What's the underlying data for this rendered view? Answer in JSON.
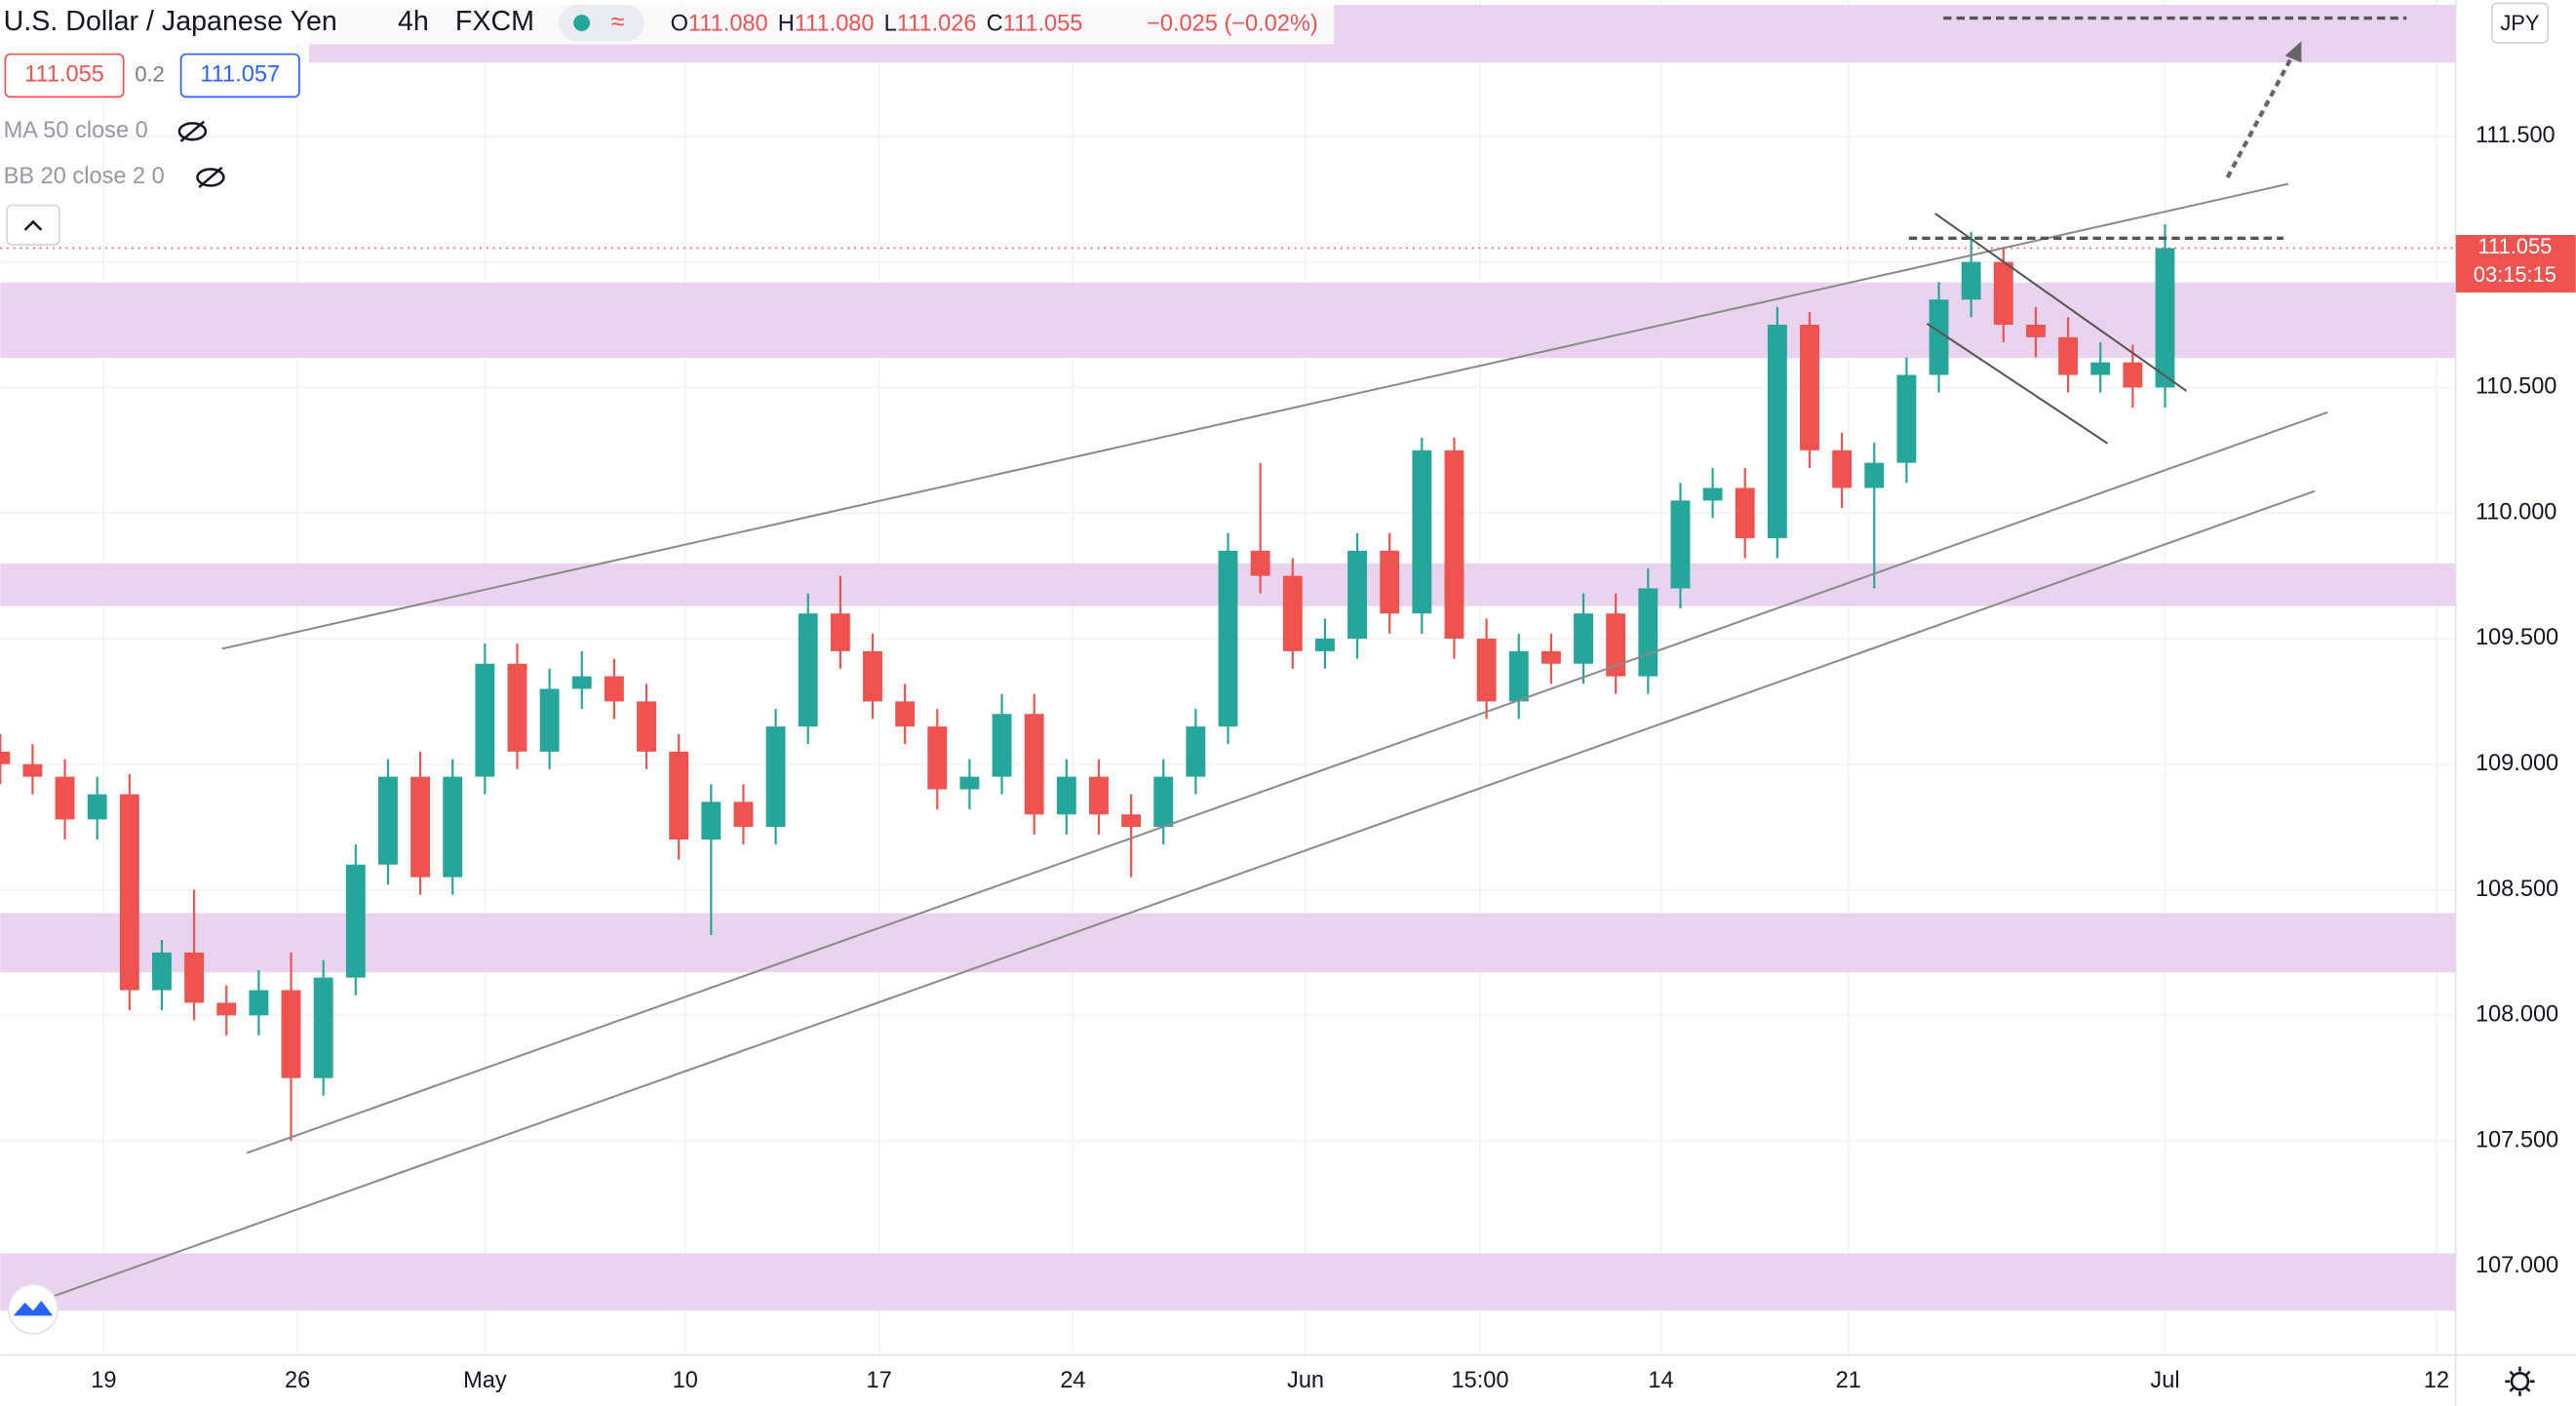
{
  "header": {
    "symbol": "U.S. Dollar / Japanese Yen",
    "interval": "4h",
    "exchange": "FXCM",
    "ohlc": [
      {
        "key": "O",
        "value": "111.080"
      },
      {
        "key": "H",
        "value": "111.080"
      },
      {
        "key": "L",
        "value": "111.026"
      },
      {
        "key": "C",
        "value": "111.055"
      }
    ],
    "change": "−0.025 (−0.02%)",
    "sell": "111.055",
    "spread": "0.2",
    "buy": "111.057",
    "indicators": [
      "MA 50 close 0",
      "BB 20 close 2 0"
    ],
    "currency": "JPY"
  },
  "chart_data": {
    "type": "candlestick",
    "up_color": "#26a69a",
    "down_color": "#ef5350",
    "grid": true,
    "xlim": [
      0,
      380
    ],
    "ylim": [
      106.647,
      112.043
    ],
    "yticks": [
      {
        "value": 107,
        "label": "107.000"
      },
      {
        "value": 107.5,
        "label": "107.500"
      },
      {
        "value": 108,
        "label": "108.000"
      },
      {
        "value": 108.5,
        "label": "108.500"
      },
      {
        "value": 109,
        "label": "109.000"
      },
      {
        "value": 109.5,
        "label": "109.500"
      },
      {
        "value": 110,
        "label": "110.000"
      },
      {
        "value": 110.5,
        "label": "110.500"
      },
      {
        "value": 111,
        "label": "111.000"
      },
      {
        "value": 111.5,
        "label": "111.500"
      }
    ],
    "xticks": [
      {
        "value": 16,
        "label": "19"
      },
      {
        "value": 46,
        "label": "26"
      },
      {
        "value": 75,
        "label": "May"
      },
      {
        "value": 106,
        "label": "10"
      },
      {
        "value": 136,
        "label": "17"
      },
      {
        "value": 166,
        "label": "24"
      },
      {
        "value": 202,
        "label": "Jun"
      },
      {
        "value": 229,
        "label": "15:00"
      },
      {
        "value": 257,
        "label": "14"
      },
      {
        "value": 286,
        "label": "21"
      },
      {
        "value": 335,
        "label": "Jul"
      },
      {
        "value": 377,
        "label": "12"
      }
    ],
    "x": [
      0,
      5,
      10,
      15,
      20,
      25,
      30,
      35,
      40,
      45,
      50,
      55,
      60,
      65,
      70,
      75,
      80,
      85,
      90,
      95,
      100,
      105,
      110,
      115,
      120,
      125,
      130,
      135,
      140,
      145,
      150,
      155,
      160,
      165,
      170,
      175,
      180,
      185,
      190,
      195,
      200,
      205,
      210,
      215,
      220,
      225,
      230,
      235,
      240,
      245,
      250,
      255,
      260,
      265,
      270,
      275,
      280,
      285,
      290,
      295,
      300,
      305,
      310,
      315,
      320,
      325,
      330,
      335
    ],
    "open": [
      109.05,
      109.0,
      108.95,
      108.78,
      108.88,
      108.1,
      108.25,
      108.05,
      108.0,
      108.1,
      107.75,
      108.15,
      108.6,
      108.95,
      108.55,
      108.95,
      109.4,
      109.05,
      109.3,
      109.35,
      109.25,
      109.05,
      108.7,
      108.85,
      108.75,
      109.15,
      109.6,
      109.45,
      109.25,
      109.15,
      108.9,
      108.95,
      109.2,
      108.8,
      108.95,
      108.8,
      108.75,
      108.95,
      109.15,
      109.85,
      109.75,
      109.45,
      109.5,
      109.85,
      109.6,
      110.25,
      109.5,
      109.25,
      109.45,
      109.4,
      109.6,
      109.35,
      109.7,
      110.05,
      110.1,
      109.9,
      110.75,
      110.25,
      110.1,
      110.2,
      110.55,
      110.85,
      111.0,
      110.75,
      110.7,
      110.55,
      110.6,
      110.5
    ],
    "high": [
      109.12,
      109.08,
      109.02,
      108.95,
      108.96,
      108.3,
      108.5,
      108.12,
      108.18,
      108.25,
      108.22,
      108.68,
      109.02,
      109.05,
      109.02,
      109.48,
      109.48,
      109.38,
      109.45,
      109.42,
      109.32,
      109.12,
      108.92,
      108.92,
      109.22,
      109.68,
      109.75,
      109.52,
      109.32,
      109.22,
      109.02,
      109.28,
      109.28,
      109.02,
      109.02,
      108.88,
      109.02,
      109.22,
      109.92,
      110.2,
      109.82,
      109.58,
      109.92,
      109.92,
      110.3,
      110.3,
      109.58,
      109.52,
      109.52,
      109.68,
      109.68,
      109.78,
      110.12,
      110.18,
      110.18,
      110.82,
      110.8,
      110.32,
      110.28,
      110.62,
      110.92,
      111.12,
      111.06,
      110.82,
      110.78,
      110.68,
      110.67,
      111.15
    ],
    "low": [
      108.92,
      108.88,
      108.7,
      108.7,
      108.02,
      108.02,
      107.98,
      107.92,
      107.92,
      107.5,
      107.68,
      108.08,
      108.52,
      108.48,
      108.48,
      108.88,
      108.98,
      108.98,
      109.22,
      109.18,
      108.98,
      108.62,
      108.32,
      108.68,
      108.68,
      109.08,
      109.38,
      109.18,
      109.08,
      108.82,
      108.82,
      108.88,
      108.72,
      108.72,
      108.72,
      108.55,
      108.68,
      108.88,
      109.08,
      109.68,
      109.38,
      109.38,
      109.42,
      109.52,
      109.52,
      109.42,
      109.18,
      109.18,
      109.32,
      109.32,
      109.28,
      109.28,
      109.62,
      109.98,
      109.82,
      109.82,
      110.18,
      110.02,
      109.7,
      110.12,
      110.48,
      110.78,
      110.68,
      110.62,
      110.48,
      110.48,
      110.42,
      110.42
    ],
    "close": [
      109.0,
      108.95,
      108.78,
      108.88,
      108.1,
      108.25,
      108.05,
      108.0,
      108.1,
      107.75,
      108.15,
      108.6,
      108.95,
      108.55,
      108.95,
      109.4,
      109.05,
      109.3,
      109.35,
      109.25,
      109.05,
      108.7,
      108.85,
      108.75,
      109.15,
      109.6,
      109.45,
      109.25,
      109.15,
      108.9,
      108.95,
      109.2,
      108.8,
      108.95,
      108.8,
      108.75,
      108.95,
      109.15,
      109.85,
      109.75,
      109.45,
      109.5,
      109.85,
      109.6,
      110.25,
      109.5,
      109.25,
      109.45,
      109.4,
      109.6,
      109.35,
      109.7,
      110.05,
      110.1,
      109.9,
      110.75,
      110.25,
      110.1,
      110.2,
      110.55,
      110.85,
      111.0,
      110.75,
      110.7,
      110.55,
      110.6,
      110.5,
      111.055
    ],
    "last_price": {
      "value": 111.055,
      "label": "111.055"
    },
    "countdown": "03:15:15"
  }
}
